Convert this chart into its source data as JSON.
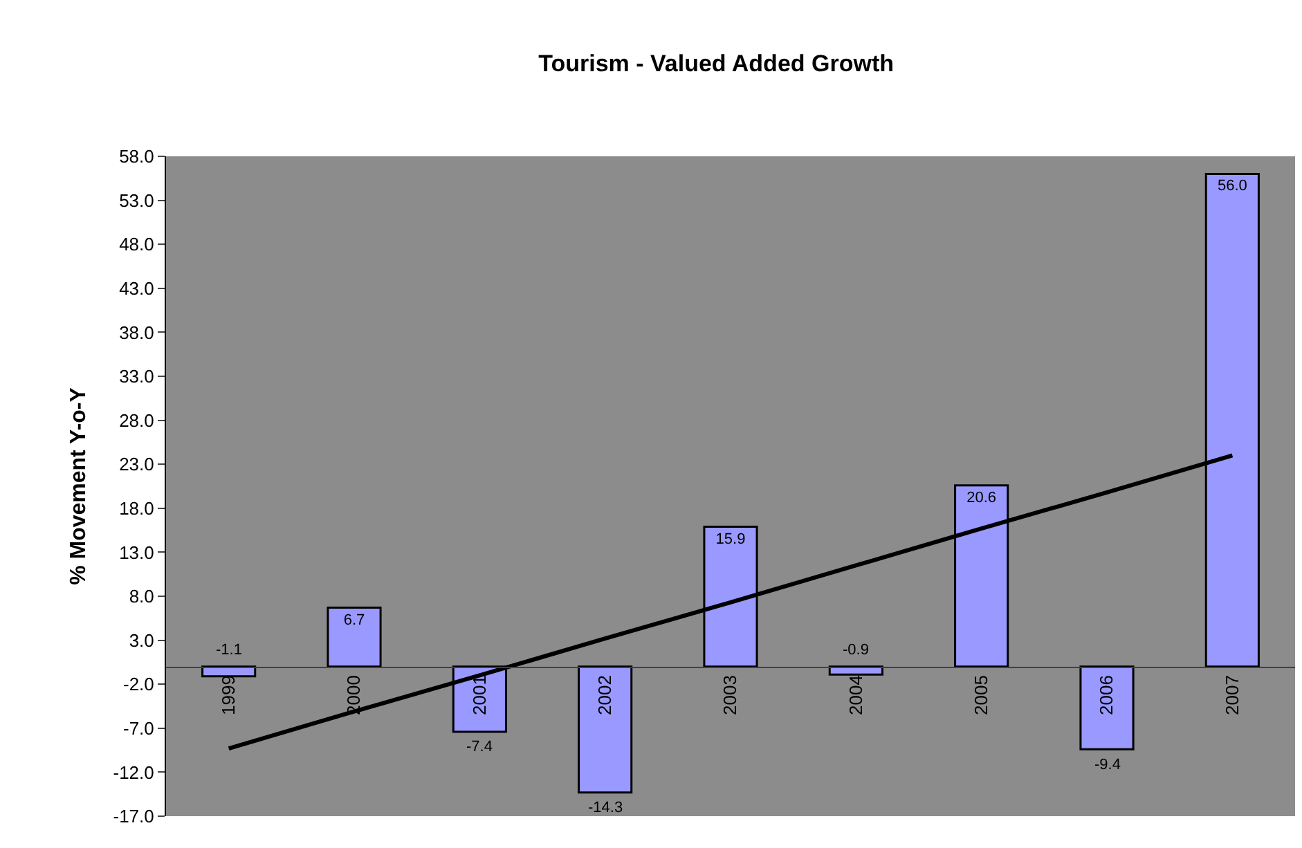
{
  "chart_data": {
    "type": "bar",
    "title": "Tourism - Valued Added Growth",
    "ylabel": "% Movement Y-o-Y",
    "categories": [
      "1999",
      "2000",
      "2001",
      "2002",
      "2003",
      "2004",
      "2005",
      "2006",
      "2007"
    ],
    "series": [
      {
        "color": "#9999ff",
        "values": [
          -1.1,
          6.7,
          -7.4,
          -14.3,
          15.9,
          -0.9,
          20.6,
          -9.4,
          56.0
        ],
        "value_labels": [
          "-1.1",
          "6.7",
          "-7.4",
          "-14.3",
          "15.9",
          "-0.9",
          "20.6",
          "-9.4",
          "56.0"
        ]
      },
      {
        "type": "line",
        "color": "#000000",
        "values": [
          -9.3,
          -5.1,
          -1.0,
          3.2,
          7.3,
          11.5,
          15.7,
          19.8,
          24.0
        ]
      }
    ],
    "ylim": [
      -17.0,
      58.0
    ],
    "yticks": [
      {
        "value": -17,
        "label": "-17.0"
      },
      {
        "value": -12,
        "label": "-12.0"
      },
      {
        "value": -7,
        "label": "-7.0"
      },
      {
        "value": -2,
        "label": "-2.0"
      },
      {
        "value": 3,
        "label": "3.0"
      },
      {
        "value": 8,
        "label": "8.0"
      },
      {
        "value": 13,
        "label": "13.0"
      },
      {
        "value": 18,
        "label": "18.0"
      },
      {
        "value": 23,
        "label": "23.0"
      },
      {
        "value": 28,
        "label": "28.0"
      },
      {
        "value": 33,
        "label": "33.0"
      },
      {
        "value": 38,
        "label": "38.0"
      },
      {
        "value": 43,
        "label": "43.0"
      },
      {
        "value": 48,
        "label": "48.0"
      },
      {
        "value": 53,
        "label": "53.0"
      },
      {
        "value": 58,
        "label": "58.0"
      }
    ],
    "grid": false
  }
}
